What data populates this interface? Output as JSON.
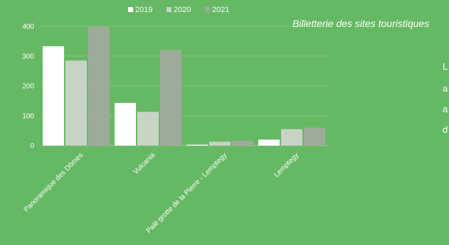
{
  "chart_data": {
    "type": "bar",
    "title": "Billetterie des sites touristiques",
    "categories": [
      "Panoramique des Dômes",
      "Vulcania",
      "Palé grotte de la Pierre - Lemptegy",
      "Lemptegy"
    ],
    "series": [
      {
        "name": "2019",
        "color": "#ffffff",
        "values": [
          333,
          143,
          3,
          20
        ]
      },
      {
        "name": "2020",
        "color": "#c8d3c6",
        "values": [
          285,
          113,
          13,
          55
        ]
      },
      {
        "name": "2021",
        "color": "#9eaa9c",
        "values": [
          398,
          320,
          16,
          60
        ]
      }
    ],
    "ylim": [
      0,
      400
    ],
    "yticks": [
      0,
      100,
      200,
      300,
      400
    ],
    "grid": true,
    "legend_position": "top"
  },
  "side_text": {
    "letters": [
      "L",
      "a",
      "a",
      "d"
    ]
  }
}
